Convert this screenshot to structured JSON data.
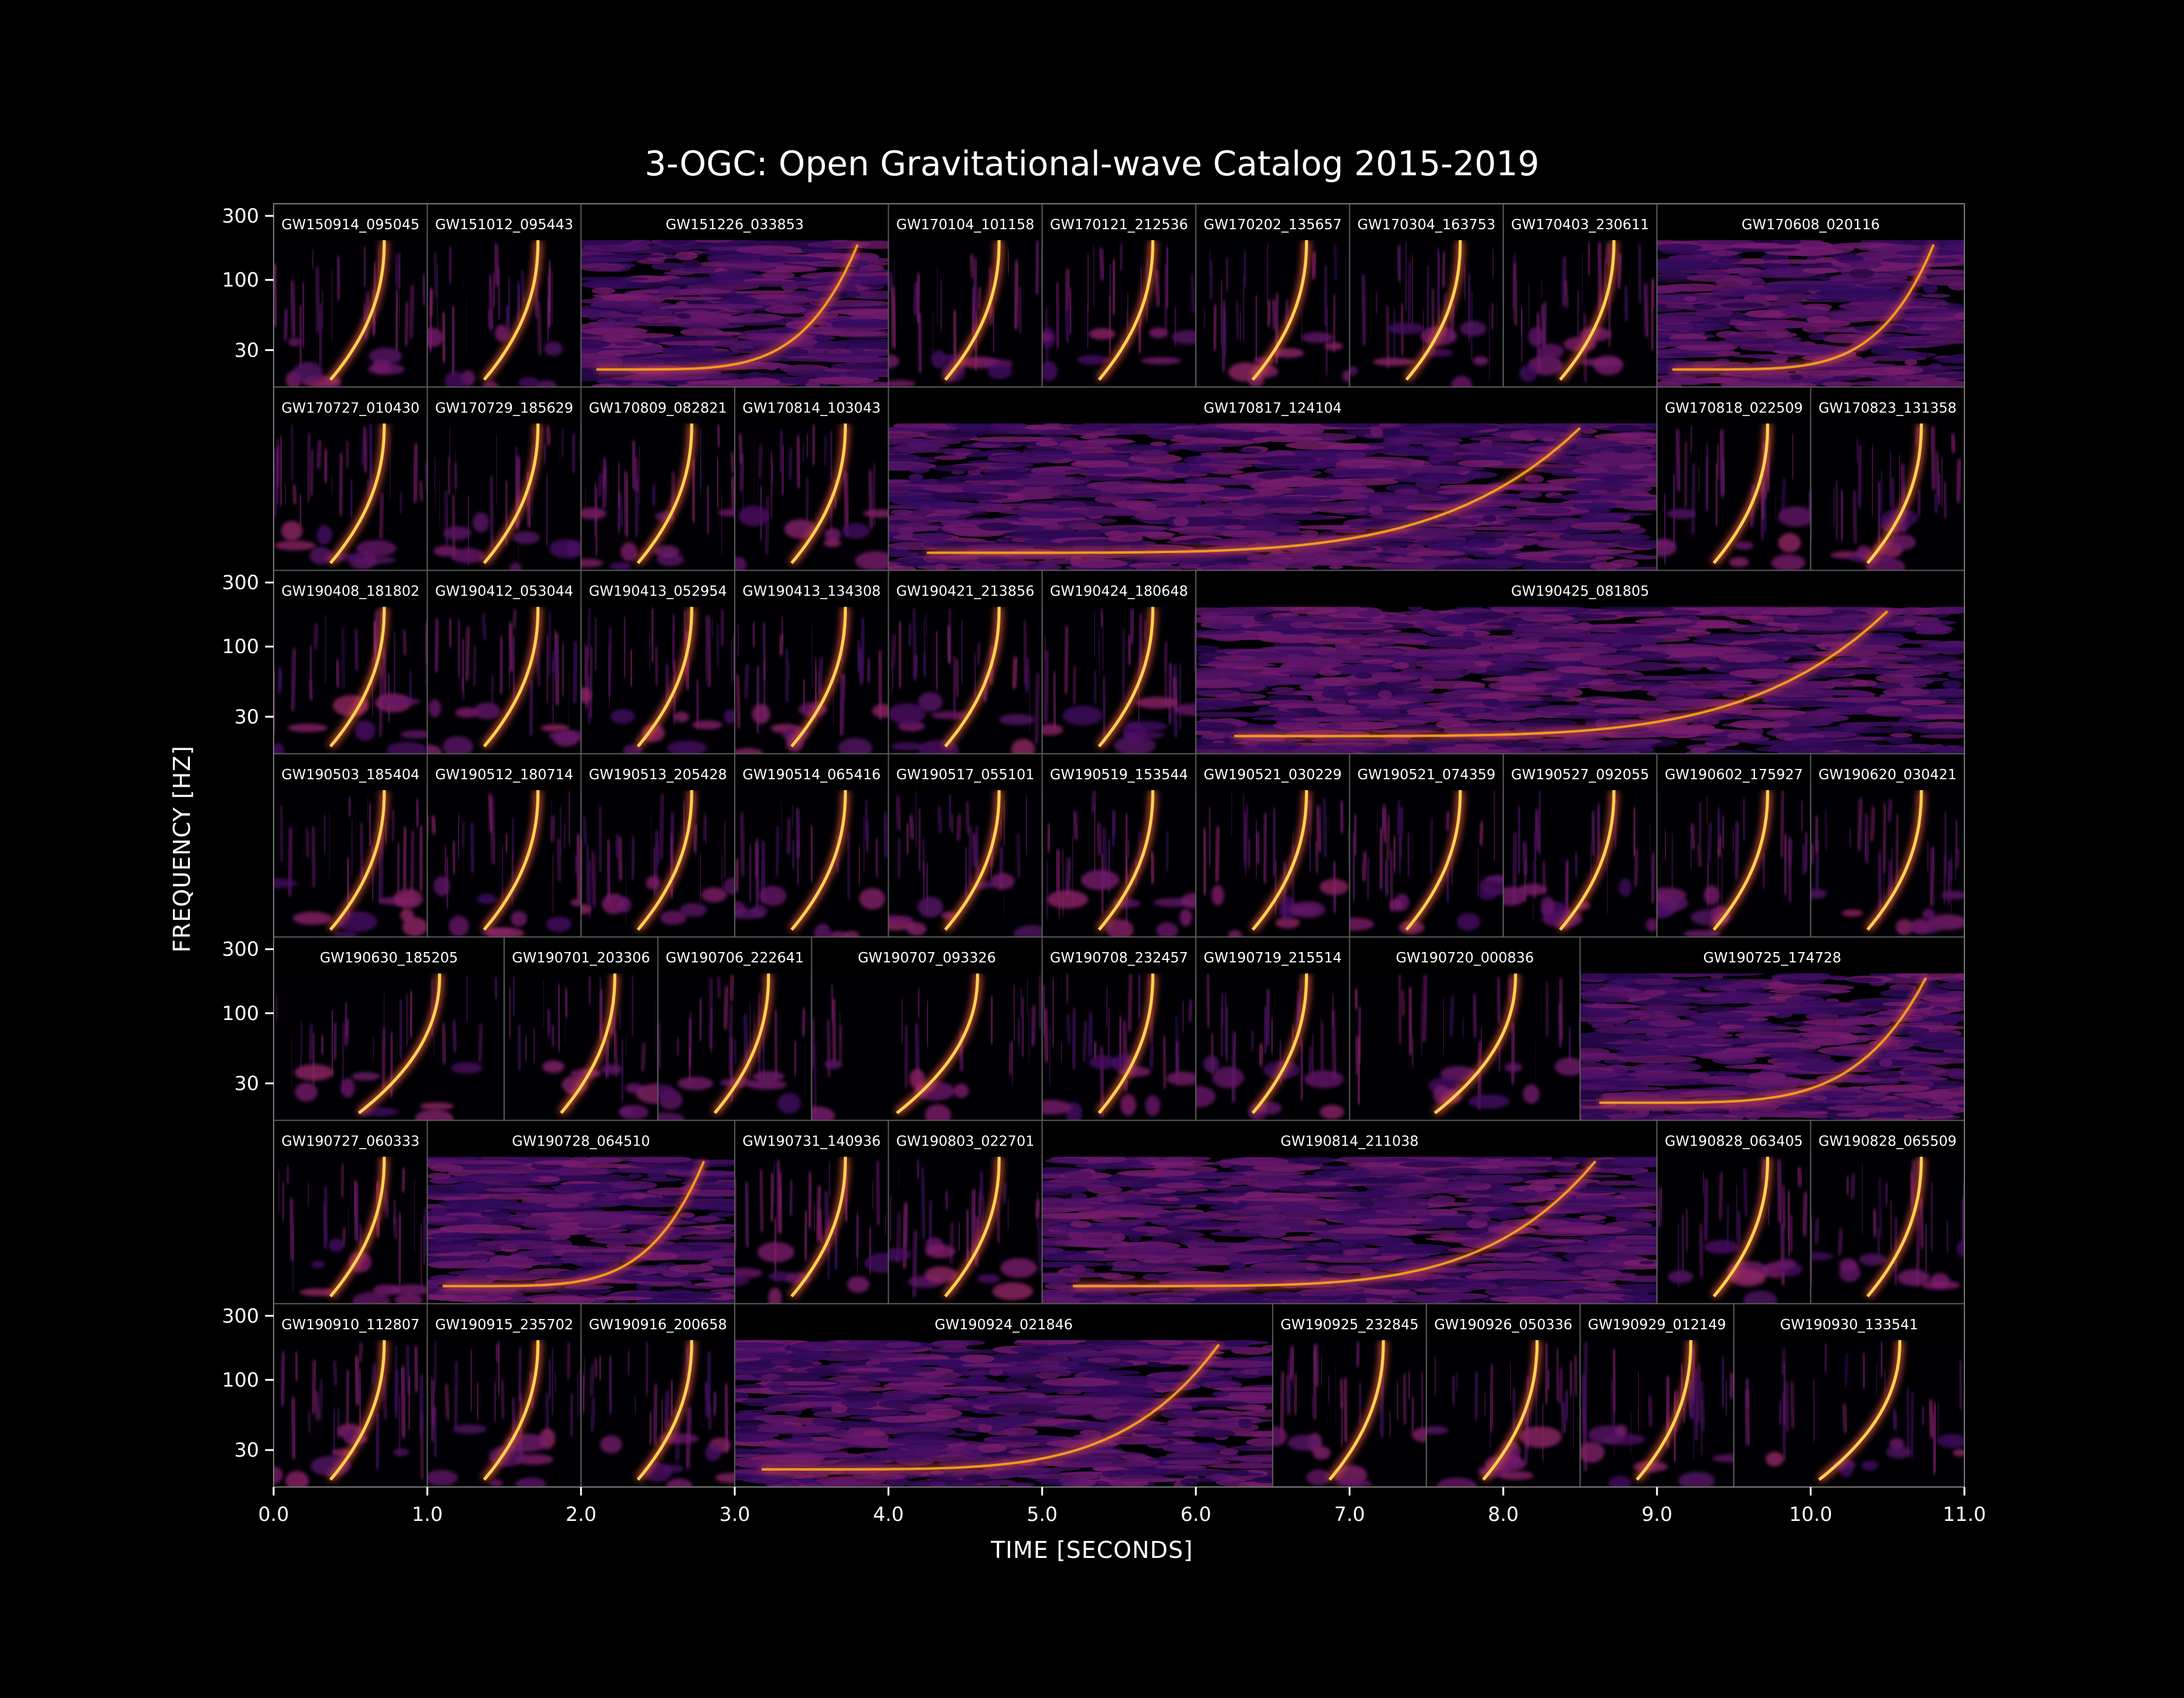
{
  "chart_data": {
    "type": "heatmap",
    "title": "3-OGC: Open Gravitational-wave Catalog 2015-2019",
    "xlabel": "TIME [SECONDS]",
    "ylabel": "FREQUENCY [HZ]",
    "x_range": [
      0,
      11
    ],
    "x_ticks": [
      "0.0",
      "1.0",
      "2.0",
      "3.0",
      "4.0",
      "5.0",
      "6.0",
      "7.0",
      "8.0",
      "9.0",
      "10.0",
      "11.0"
    ],
    "y_scale": "log",
    "y_range": [
      20,
      300
    ],
    "y_ticks": [
      "30",
      "100",
      "300"
    ],
    "y_tick_rows": [
      0,
      2,
      4,
      6
    ],
    "colormap": [
      "#000004",
      "#320a5e",
      "#781c6d",
      "#bc3754",
      "#ed6925",
      "#fbb61a",
      "#fcffa4"
    ],
    "rows": [
      [
        {
          "label": "GW150914_095045",
          "start": 0.0,
          "end": 1.0
        },
        {
          "label": "GW151012_095443",
          "start": 1.0,
          "end": 2.0
        },
        {
          "label": "GW151226_033853",
          "start": 2.0,
          "end": 4.0
        },
        {
          "label": "GW170104_101158",
          "start": 4.0,
          "end": 5.0
        },
        {
          "label": "GW170121_212536",
          "start": 5.0,
          "end": 6.0
        },
        {
          "label": "GW170202_135657",
          "start": 6.0,
          "end": 7.0
        },
        {
          "label": "GW170304_163753",
          "start": 7.0,
          "end": 8.0
        },
        {
          "label": "GW170403_230611",
          "start": 8.0,
          "end": 9.0
        },
        {
          "label": "GW170608_020116",
          "start": 9.0,
          "end": 11.0
        }
      ],
      [
        {
          "label": "GW170727_010430",
          "start": 0.0,
          "end": 1.0
        },
        {
          "label": "GW170729_185629",
          "start": 1.0,
          "end": 2.0
        },
        {
          "label": "GW170809_082821",
          "start": 2.0,
          "end": 3.0
        },
        {
          "label": "GW170814_103043",
          "start": 3.0,
          "end": 4.0
        },
        {
          "label": "GW170817_124104",
          "start": 4.0,
          "end": 9.0
        },
        {
          "label": "GW170818_022509",
          "start": 9.0,
          "end": 10.0
        },
        {
          "label": "GW170823_131358",
          "start": 10.0,
          "end": 11.0
        }
      ],
      [
        {
          "label": "GW190408_181802",
          "start": 0.0,
          "end": 1.0
        },
        {
          "label": "GW190412_053044",
          "start": 1.0,
          "end": 2.0
        },
        {
          "label": "GW190413_052954",
          "start": 2.0,
          "end": 3.0
        },
        {
          "label": "GW190413_134308",
          "start": 3.0,
          "end": 4.0
        },
        {
          "label": "GW190421_213856",
          "start": 4.0,
          "end": 5.0
        },
        {
          "label": "GW190424_180648",
          "start": 5.0,
          "end": 6.0
        },
        {
          "label": "GW190425_081805",
          "start": 6.0,
          "end": 11.0
        }
      ],
      [
        {
          "label": "GW190503_185404",
          "start": 0.0,
          "end": 1.0
        },
        {
          "label": "GW190512_180714",
          "start": 1.0,
          "end": 2.0
        },
        {
          "label": "GW190513_205428",
          "start": 2.0,
          "end": 3.0
        },
        {
          "label": "GW190514_065416",
          "start": 3.0,
          "end": 4.0
        },
        {
          "label": "GW190517_055101",
          "start": 4.0,
          "end": 5.0
        },
        {
          "label": "GW190519_153544",
          "start": 5.0,
          "end": 6.0
        },
        {
          "label": "GW190521_030229",
          "start": 6.0,
          "end": 7.0
        },
        {
          "label": "GW190521_074359",
          "start": 7.0,
          "end": 8.0
        },
        {
          "label": "GW190527_092055",
          "start": 8.0,
          "end": 9.0
        },
        {
          "label": "GW190602_175927",
          "start": 9.0,
          "end": 10.0
        },
        {
          "label": "GW190620_030421",
          "start": 10.0,
          "end": 11.0
        }
      ],
      [
        {
          "label": "GW190630_185205",
          "start": 0.0,
          "end": 1.5
        },
        {
          "label": "GW190701_203306",
          "start": 1.5,
          "end": 2.5
        },
        {
          "label": "GW190706_222641",
          "start": 2.5,
          "end": 3.5
        },
        {
          "label": "GW190707_093326",
          "start": 3.5,
          "end": 5.0
        },
        {
          "label": "GW190708_232457",
          "start": 5.0,
          "end": 6.0
        },
        {
          "label": "GW190719_215514",
          "start": 6.0,
          "end": 7.0
        },
        {
          "label": "GW190720_000836",
          "start": 7.0,
          "end": 8.5
        },
        {
          "label": "GW190725_174728",
          "start": 8.5,
          "end": 11.0
        }
      ],
      [
        {
          "label": "GW190727_060333",
          "start": 0.0,
          "end": 1.0
        },
        {
          "label": "GW190728_064510",
          "start": 1.0,
          "end": 3.0
        },
        {
          "label": "GW190731_140936",
          "start": 3.0,
          "end": 4.0
        },
        {
          "label": "GW190803_022701",
          "start": 4.0,
          "end": 5.0
        },
        {
          "label": "GW190814_211038",
          "start": 5.0,
          "end": 9.0
        },
        {
          "label": "GW190828_063405",
          "start": 9.0,
          "end": 10.0
        },
        {
          "label": "GW190828_065509",
          "start": 10.0,
          "end": 11.0
        }
      ],
      [
        {
          "label": "GW190910_112807",
          "start": 0.0,
          "end": 1.0
        },
        {
          "label": "GW190915_235702",
          "start": 1.0,
          "end": 2.0
        },
        {
          "label": "GW190916_200658",
          "start": 2.0,
          "end": 3.0
        },
        {
          "label": "GW190924_021846",
          "start": 3.0,
          "end": 6.5
        },
        {
          "label": "GW190925_232845",
          "start": 6.5,
          "end": 7.5
        },
        {
          "label": "GW190926_050336",
          "start": 7.5,
          "end": 8.5
        },
        {
          "label": "GW190929_012149",
          "start": 8.5,
          "end": 9.5
        },
        {
          "label": "GW190930_133541",
          "start": 9.5,
          "end": 11.0
        }
      ]
    ]
  }
}
